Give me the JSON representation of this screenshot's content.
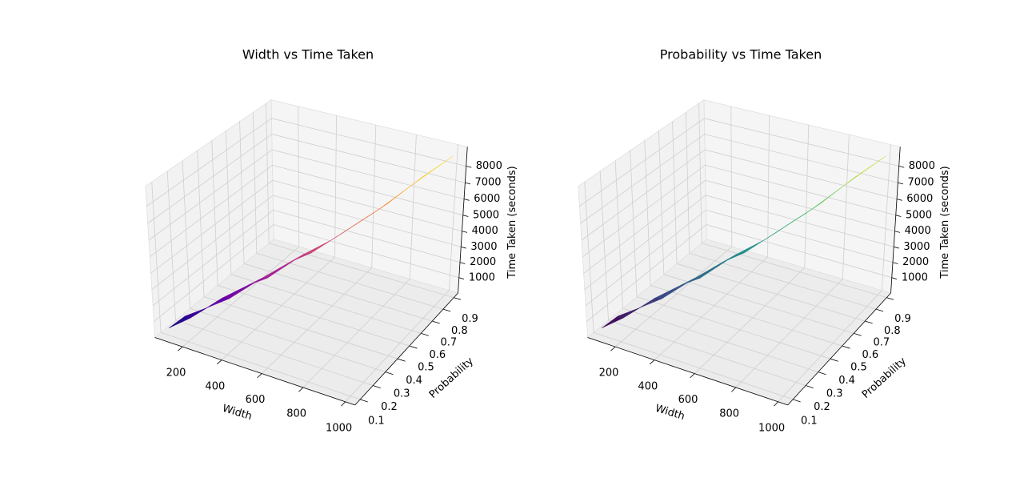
{
  "chart_data": [
    {
      "type": "surface",
      "title": "Width vs Time Taken",
      "xlabel": "Width",
      "ylabel": "Probability",
      "zlabel": "Time Taken (seconds)",
      "x": [
        100,
        140,
        190,
        230,
        280,
        330,
        370,
        420,
        460,
        510,
        550,
        600,
        640,
        690,
        730,
        780,
        820,
        870,
        920,
        1000
      ],
      "y": [
        0.1,
        0.16,
        0.13,
        0.2,
        0.24,
        0.22,
        0.3,
        0.33,
        0.31,
        0.4,
        0.45,
        0.43,
        0.52,
        0.55,
        0.6,
        0.63,
        0.68,
        0.75,
        0.8,
        0.9
      ],
      "z": [
        450,
        900,
        1200,
        1500,
        2000,
        2300,
        2700,
        3100,
        3400,
        3900,
        4200,
        4600,
        4900,
        5400,
        5800,
        6300,
        6700,
        7300,
        7900,
        8700
      ],
      "colormap": [
        "#0d0887",
        "#6a00a8",
        "#b12a90",
        "#e16462",
        "#fca636",
        "#f0f921"
      ],
      "xlim": [
        55,
        1045
      ],
      "ylim": [
        0.06,
        0.94
      ],
      "zlim": [
        -20,
        9150
      ],
      "xticks": [
        200,
        400,
        600,
        800,
        1000
      ],
      "yticks": [
        0.1,
        0.2,
        0.3,
        0.4,
        0.5,
        0.6,
        0.7,
        0.8,
        0.9
      ],
      "zticks": [
        1000,
        2000,
        3000,
        4000,
        5000,
        6000,
        7000,
        8000
      ],
      "grid": true
    },
    {
      "type": "surface",
      "title": "Probability vs Time Taken",
      "xlabel": "Width",
      "ylabel": "Probability",
      "zlabel": "Time Taken (seconds)",
      "x": [
        100,
        140,
        190,
        230,
        280,
        330,
        370,
        420,
        460,
        510,
        550,
        600,
        640,
        690,
        730,
        780,
        820,
        870,
        920,
        1000
      ],
      "y": [
        0.1,
        0.16,
        0.13,
        0.2,
        0.24,
        0.22,
        0.3,
        0.33,
        0.31,
        0.4,
        0.45,
        0.43,
        0.52,
        0.55,
        0.6,
        0.63,
        0.68,
        0.75,
        0.8,
        0.9
      ],
      "z": [
        450,
        900,
        1200,
        1500,
        2000,
        2300,
        2700,
        3100,
        3400,
        3900,
        4200,
        4600,
        4900,
        5400,
        5800,
        6300,
        6700,
        7300,
        7900,
        8700
      ],
      "colormap": [
        "#440154",
        "#3b528b",
        "#21918c",
        "#5ec962",
        "#fde725"
      ],
      "xlim": [
        55,
        1045
      ],
      "ylim": [
        0.06,
        0.94
      ],
      "zlim": [
        -20,
        9150
      ],
      "xticks": [
        200,
        400,
        600,
        800,
        1000
      ],
      "yticks": [
        0.1,
        0.2,
        0.3,
        0.4,
        0.5,
        0.6,
        0.7,
        0.8,
        0.9
      ],
      "zticks": [
        1000,
        2000,
        3000,
        4000,
        5000,
        6000,
        7000,
        8000
      ],
      "grid": true
    }
  ]
}
